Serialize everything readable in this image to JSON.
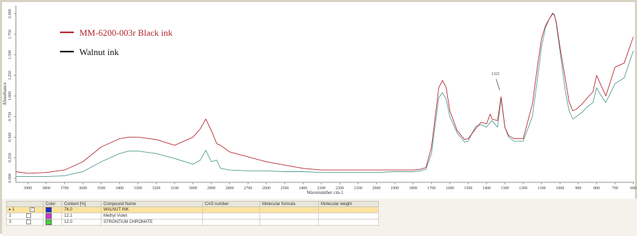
{
  "chart_data": {
    "type": "line",
    "title": "",
    "xlabel": "Wavenumber cm-1",
    "ylabel": "Absorbance",
    "xlim": [
      3965,
      595
    ],
    "ylim": [
      -0.05,
      2.1
    ],
    "x_ticks": [
      3900,
      3800,
      3700,
      3600,
      3500,
      3400,
      3300,
      3200,
      3100,
      3000,
      2900,
      2800,
      2700,
      2600,
      2500,
      2400,
      2300,
      2200,
      2100,
      2000,
      1900,
      1800,
      1700,
      1600,
      1500,
      1400,
      1300,
      1200,
      1100,
      1000,
      900,
      800,
      700,
      600
    ],
    "y_ticks": [
      "0.000",
      "0.250",
      "0.500",
      "0.750",
      "1.000",
      "1.250",
      "1.500",
      "1.750",
      "2.000"
    ],
    "y_tick_values": [
      0,
      0.25,
      0.5,
      0.75,
      1.0,
      1.25,
      1.5,
      1.75,
      2.0
    ],
    "legend_placement": "top-left",
    "series": [
      {
        "name": "MM-6200-003r Black ink",
        "color": "#b3262e",
        "x": [
          3965,
          3900,
          3800,
          3700,
          3600,
          3500,
          3400,
          3350,
          3300,
          3200,
          3100,
          3000,
          2960,
          2930,
          2900,
          2870,
          2850,
          2800,
          2700,
          2600,
          2500,
          2400,
          2300,
          2200,
          2100,
          2000,
          1900,
          1800,
          1760,
          1730,
          1700,
          1660,
          1640,
          1620,
          1600,
          1560,
          1520,
          1500,
          1460,
          1430,
          1400,
          1380,
          1370,
          1340,
          1330,
          1321,
          1300,
          1280,
          1250,
          1200,
          1150,
          1120,
          1100,
          1080,
          1060,
          1040,
          1030,
          1020,
          1000,
          970,
          950,
          930,
          910,
          880,
          850,
          820,
          800,
          780,
          750,
          700,
          650,
          600
        ],
        "y": [
          0.08,
          0.06,
          0.07,
          0.1,
          0.2,
          0.38,
          0.48,
          0.5,
          0.5,
          0.47,
          0.4,
          0.5,
          0.6,
          0.72,
          0.58,
          0.42,
          0.4,
          0.32,
          0.26,
          0.2,
          0.16,
          0.12,
          0.1,
          0.1,
          0.1,
          0.1,
          0.1,
          0.1,
          0.11,
          0.13,
          0.38,
          1.1,
          1.19,
          1.1,
          0.82,
          0.58,
          0.47,
          0.48,
          0.6,
          0.68,
          0.66,
          0.78,
          0.72,
          0.7,
          0.85,
          0.99,
          0.62,
          0.52,
          0.48,
          0.48,
          0.9,
          1.4,
          1.7,
          1.85,
          1.93,
          2.0,
          1.98,
          1.9,
          1.6,
          1.2,
          0.93,
          0.82,
          0.84,
          0.9,
          0.98,
          1.05,
          1.25,
          1.15,
          1.0,
          1.35,
          1.4,
          1.72
        ]
      },
      {
        "name": "Walnut ink",
        "color": "#4f9a8c",
        "x": [
          3965,
          3900,
          3800,
          3700,
          3600,
          3500,
          3400,
          3350,
          3300,
          3200,
          3100,
          3000,
          2960,
          2930,
          2900,
          2870,
          2850,
          2800,
          2700,
          2600,
          2500,
          2400,
          2300,
          2200,
          2100,
          2000,
          1900,
          1800,
          1760,
          1730,
          1700,
          1660,
          1640,
          1620,
          1600,
          1560,
          1520,
          1500,
          1460,
          1430,
          1400,
          1380,
          1370,
          1340,
          1330,
          1321,
          1300,
          1280,
          1250,
          1200,
          1150,
          1120,
          1100,
          1080,
          1060,
          1040,
          1030,
          1020,
          1000,
          970,
          950,
          930,
          910,
          880,
          850,
          820,
          800,
          780,
          750,
          700,
          650,
          600
        ],
        "y": [
          0.02,
          0.02,
          0.02,
          0.03,
          0.08,
          0.2,
          0.3,
          0.33,
          0.33,
          0.3,
          0.24,
          0.17,
          0.22,
          0.34,
          0.2,
          0.22,
          0.12,
          0.1,
          0.09,
          0.09,
          0.08,
          0.08,
          0.07,
          0.07,
          0.07,
          0.07,
          0.08,
          0.08,
          0.09,
          0.11,
          0.3,
          0.98,
          1.04,
          0.96,
          0.75,
          0.55,
          0.44,
          0.45,
          0.63,
          0.65,
          0.62,
          0.68,
          0.7,
          0.62,
          0.8,
          0.97,
          0.62,
          0.5,
          0.45,
          0.45,
          0.75,
          1.25,
          1.6,
          1.82,
          1.93,
          2.01,
          1.99,
          1.88,
          1.55,
          1.05,
          0.82,
          0.72,
          0.75,
          0.8,
          0.87,
          0.92,
          1.1,
          1.02,
          0.92,
          1.15,
          1.22,
          1.55
        ]
      }
    ],
    "annotations": [
      {
        "text": "1321",
        "x": 1321
      }
    ]
  },
  "component_table": {
    "headers": [
      "",
      "Color",
      "Content [%]",
      "Compound Name",
      "CAS number",
      "Molecular formula",
      "Molecular weight"
    ],
    "rows": [
      {
        "index": "1",
        "checked": true,
        "color": "#1c2bd0",
        "content": "76.0",
        "name": "WALNUT INK"
      },
      {
        "index": "2",
        "checked": false,
        "color": "#d62fd6",
        "content": "12.1",
        "name": "Methyl Violet"
      },
      {
        "index": "3",
        "checked": false,
        "color": "#3fd83f",
        "content": "12.0",
        "name": "STRONTIUM CHROMATE"
      }
    ]
  }
}
